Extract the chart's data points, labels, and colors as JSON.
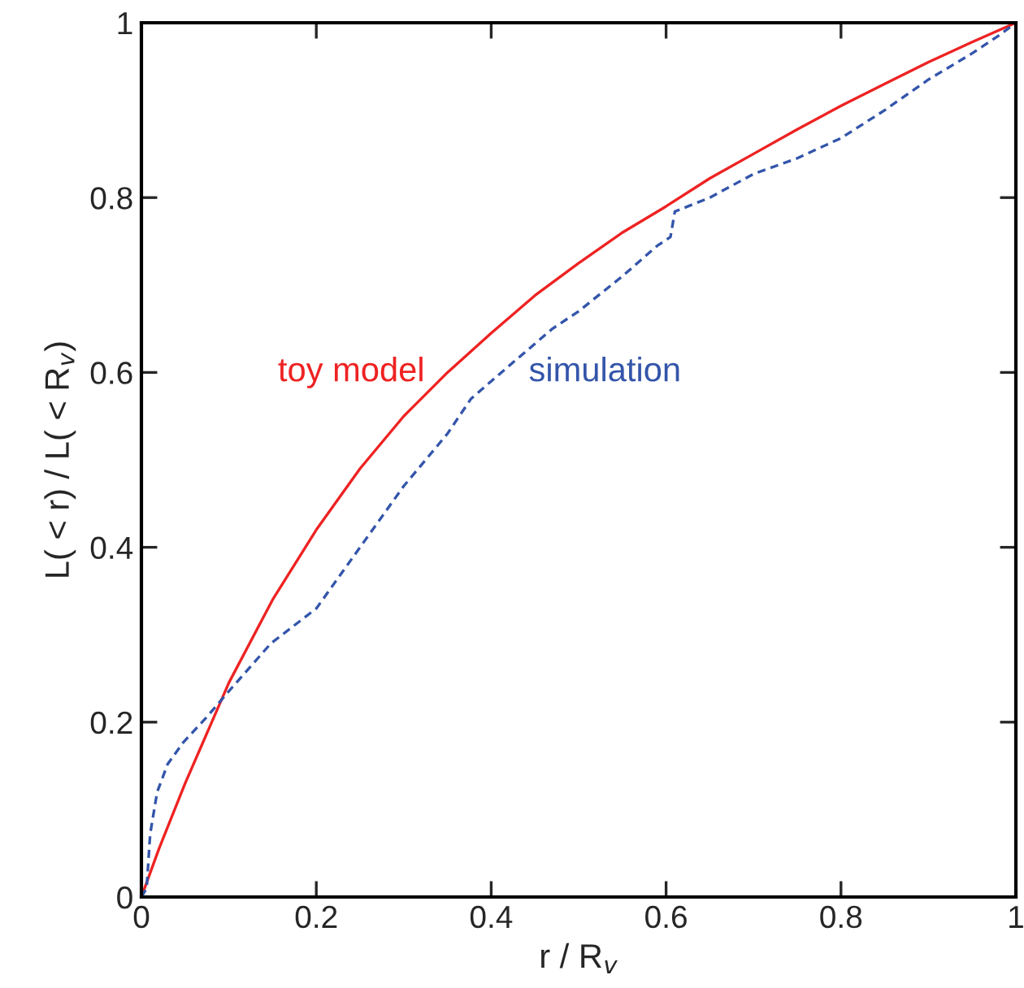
{
  "chart_data": {
    "type": "line",
    "xlabel": "r / R$_{v}$",
    "ylabel": "L( < r) / L( < R$_{v}$)",
    "xlim": [
      0,
      1
    ],
    "ylim": [
      0,
      1
    ],
    "xticks": [
      0,
      0.2,
      0.4,
      0.6,
      0.8,
      1
    ],
    "yticks": [
      0,
      0.2,
      0.4,
      0.6,
      0.8,
      1
    ],
    "grid": false,
    "legend": false,
    "series": [
      {
        "name": "toy model",
        "color": "#ee2222",
        "line_style": "solid",
        "x": [
          0,
          0.02,
          0.05,
          0.1,
          0.15,
          0.2,
          0.25,
          0.3,
          0.35,
          0.4,
          0.45,
          0.5,
          0.55,
          0.6,
          0.65,
          0.7,
          0.75,
          0.8,
          0.85,
          0.9,
          0.95,
          1
        ],
        "values": [
          0,
          0.055,
          0.13,
          0.245,
          0.34,
          0.42,
          0.49,
          0.55,
          0.6,
          0.645,
          0.688,
          0.725,
          0.76,
          0.79,
          0.822,
          0.85,
          0.878,
          0.905,
          0.93,
          0.955,
          0.978,
          1
        ]
      },
      {
        "name": "simulation",
        "color": "#3355aa",
        "line_style": "dashed",
        "x": [
          0,
          0.006,
          0.01,
          0.018,
          0.03,
          0.048,
          0.074,
          0.104,
          0.148,
          0.2,
          0.25,
          0.3,
          0.35,
          0.377,
          0.4,
          0.47,
          0.5,
          0.55,
          0.59,
          0.605,
          0.61,
          0.65,
          0.7,
          0.75,
          0.8,
          0.85,
          0.9,
          0.95,
          0.98,
          1
        ],
        "values": [
          0,
          0.01,
          0.072,
          0.12,
          0.152,
          0.177,
          0.205,
          0.24,
          0.29,
          0.33,
          0.4,
          0.47,
          0.53,
          0.57,
          0.59,
          0.65,
          0.67,
          0.71,
          0.745,
          0.755,
          0.784,
          0.8,
          0.827,
          0.845,
          0.868,
          0.9,
          0.935,
          0.965,
          0.985,
          1
        ]
      }
    ]
  }
}
